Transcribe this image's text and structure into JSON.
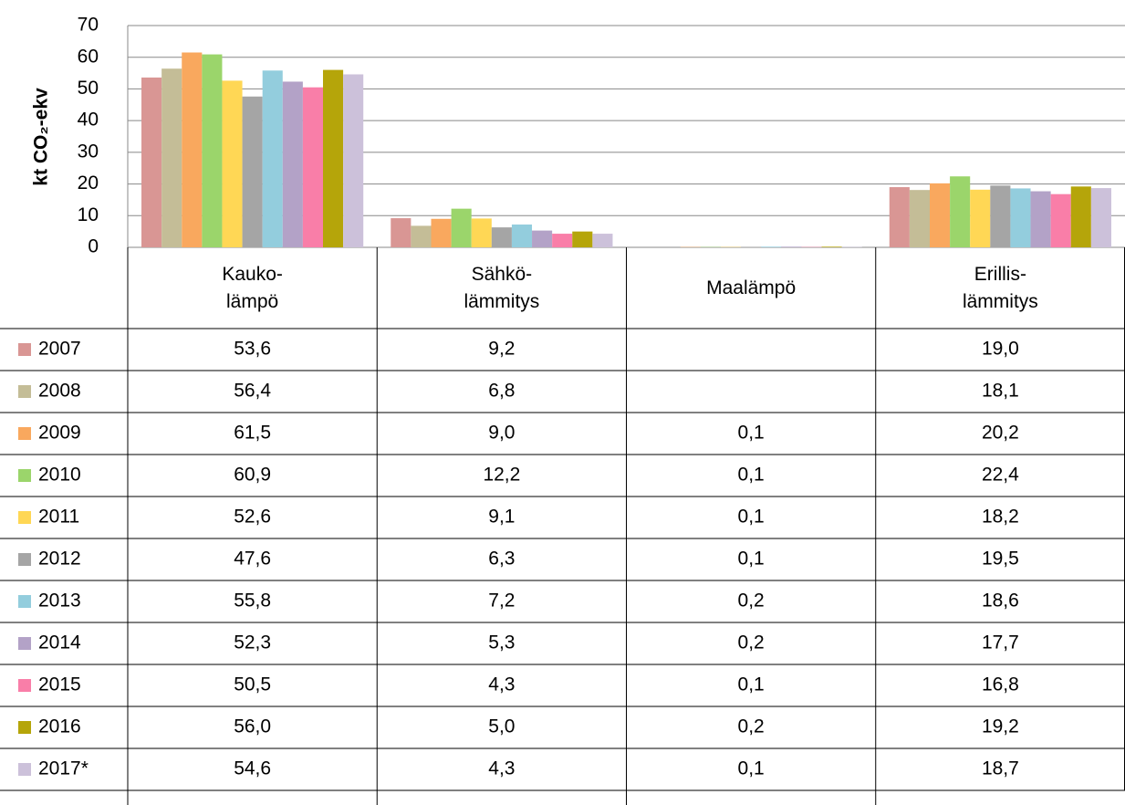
{
  "chart_data": {
    "type": "bar",
    "y_label": "kt CO₂-ekv",
    "categories": [
      "Kauko-\nlämpö",
      "Sähkö-\nlämmitys",
      "Maalämpö",
      "Erillis-\nlämmitys"
    ],
    "ylim": [
      0,
      70
    ],
    "yticks": [
      0,
      10,
      20,
      30,
      40,
      50,
      60,
      70
    ],
    "grid": true,
    "data_table": true,
    "series": [
      {
        "name": "2007",
        "color": "#d99694",
        "values": [
          53.6,
          9.2,
          null,
          19.0
        ],
        "value_labels": [
          "53,6",
          "9,2",
          null,
          "19,0"
        ]
      },
      {
        "name": "2008",
        "color": "#c4bd97",
        "values": [
          56.4,
          6.8,
          null,
          18.1
        ],
        "value_labels": [
          "56,4",
          "6,8",
          null,
          "18,1"
        ]
      },
      {
        "name": "2009",
        "color": "#f9a85e",
        "values": [
          61.5,
          9.0,
          0.1,
          20.2
        ],
        "value_labels": [
          "61,5",
          "9,0",
          "0,1",
          "20,2"
        ]
      },
      {
        "name": "2010",
        "color": "#9bd56b",
        "values": [
          60.9,
          12.2,
          0.1,
          22.4
        ],
        "value_labels": [
          "60,9",
          "12,2",
          "0,1",
          "22,4"
        ]
      },
      {
        "name": "2011",
        "color": "#ffd755",
        "values": [
          52.6,
          9.1,
          0.1,
          18.2
        ],
        "value_labels": [
          "52,6",
          "9,1",
          "0,1",
          "18,2"
        ]
      },
      {
        "name": "2012",
        "color": "#a5a5a5",
        "values": [
          47.6,
          6.3,
          0.1,
          19.5
        ],
        "value_labels": [
          "47,6",
          "6,3",
          "0,1",
          "19,5"
        ]
      },
      {
        "name": "2013",
        "color": "#93cddd",
        "values": [
          55.8,
          7.2,
          0.2,
          18.6
        ],
        "value_labels": [
          "55,8",
          "7,2",
          "0,2",
          "18,6"
        ]
      },
      {
        "name": "2014",
        "color": "#b3a2c7",
        "values": [
          52.3,
          5.3,
          0.2,
          17.7
        ],
        "value_labels": [
          "52,3",
          "5,3",
          "0,2",
          "17,7"
        ]
      },
      {
        "name": "2015",
        "color": "#f97ea8",
        "values": [
          50.5,
          4.3,
          0.1,
          16.8
        ],
        "value_labels": [
          "50,5",
          "4,3",
          "0,1",
          "16,8"
        ]
      },
      {
        "name": "2016",
        "color": "#b5a50a",
        "values": [
          56.0,
          5.0,
          0.2,
          19.2
        ],
        "value_labels": [
          "56,0",
          "5,0",
          "0,2",
          "19,2"
        ]
      },
      {
        "name": "2017*",
        "color": "#ccc1da",
        "values": [
          54.6,
          4.3,
          0.1,
          18.7
        ],
        "value_labels": [
          "54,6",
          "4,3",
          "0,1",
          "18,7"
        ]
      }
    ]
  }
}
